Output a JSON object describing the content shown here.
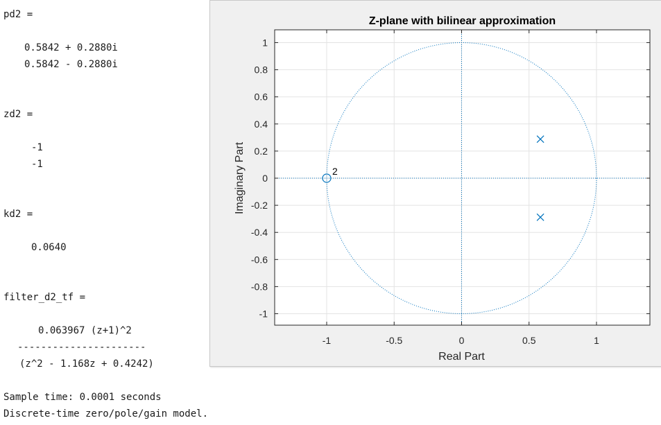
{
  "console": {
    "lines": [
      "pd2 =",
      "0.5842 + 0.2880i",
      "0.5842 - 0.2880i",
      "zd2 =",
      "-1",
      "-1",
      "kd2 =",
      "0.0640",
      "filter_d2_tf =",
      "0.063967 (z+1)^2",
      "----------------------",
      "(z^2 - 1.168z + 0.4242)",
      "Sample time: 0.0001 seconds",
      "Discrete-time zero/pole/gain model."
    ]
  },
  "chart_data": {
    "type": "scatter",
    "title": "Z-plane with bilinear approximation",
    "xlabel": "Real Part",
    "ylabel": "Imaginary Part",
    "xlim": [
      -1.4,
      1.4
    ],
    "ylim": [
      -1.1,
      1.1
    ],
    "xticks": [
      -1,
      -0.5,
      0,
      0.5,
      1
    ],
    "xtick_labels": [
      "-1",
      "-0.5",
      "0",
      "0.5",
      "1"
    ],
    "yticks": [
      1,
      0.8,
      0.6,
      0.4,
      0.2,
      0,
      -0.2,
      -0.4,
      -0.6,
      -0.8,
      -1
    ],
    "ytick_labels": [
      "1",
      "0.8",
      "0.6",
      "0.4",
      "0.2",
      "0",
      "-0.2",
      "-0.4",
      "-0.6",
      "-0.8",
      "-1"
    ],
    "grid": true,
    "unit_circle": true,
    "color": "#0072bd",
    "zeros": [
      {
        "x": -1,
        "y": 0,
        "multiplicity_label": "2"
      }
    ],
    "poles": [
      {
        "x": 0.5842,
        "y": 0.288
      },
      {
        "x": 0.5842,
        "y": -0.288
      }
    ]
  }
}
